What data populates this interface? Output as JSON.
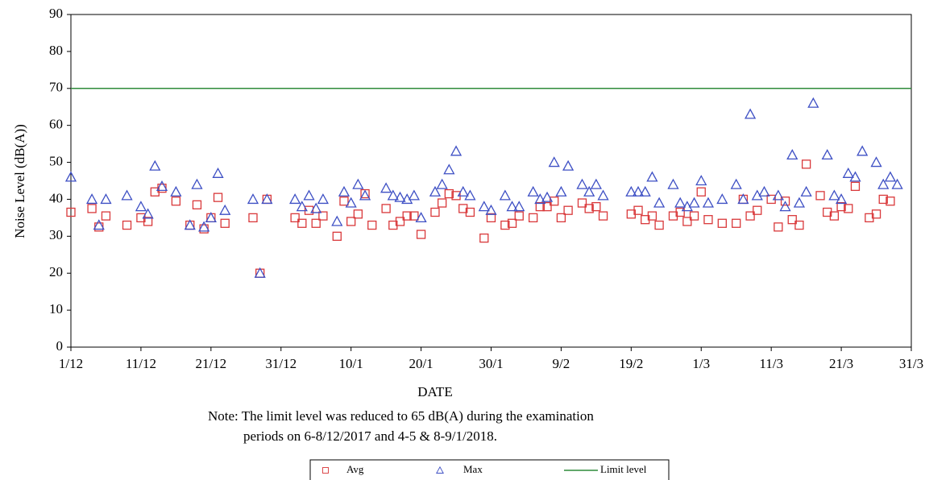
{
  "chart_data": {
    "type": "scatter",
    "y_label": "Noise Level (dB(A))",
    "x_label": "DATE",
    "notes": [
      "Note:  The limit level was reduced to 65 dB(A) during the examination",
      "periods on 6-8/12/2017 and 4-5 & 8-9/1/2018."
    ],
    "ylim": [
      0,
      90
    ],
    "yticks": [
      0,
      10,
      20,
      30,
      40,
      50,
      60,
      70,
      80,
      90
    ],
    "xlim": [
      "1/12",
      "31/3"
    ],
    "xticks": [
      "1/12",
      "11/12",
      "21/12",
      "31/12",
      "10/1",
      "20/1",
      "30/1",
      "9/2",
      "19/2",
      "1/3",
      "11/3",
      "21/3",
      "31/3"
    ],
    "x": [
      "1/12",
      "4/12",
      "5/12",
      "6/12",
      "9/12",
      "11/12",
      "12/12",
      "13/12",
      "14/12",
      "16/12",
      "18/12",
      "19/12",
      "20/12",
      "21/12",
      "22/12",
      "23/12",
      "27/12",
      "28/12",
      "29/12",
      "2/1",
      "3/1",
      "4/1",
      "5/1",
      "6/1",
      "8/1",
      "9/1",
      "10/1",
      "11/1",
      "12/1",
      "13/1",
      "15/1",
      "16/1",
      "17/1",
      "18/1",
      "19/1",
      "20/1",
      "22/1",
      "23/1",
      "24/1",
      "25/1",
      "26/1",
      "27/1",
      "29/1",
      "30/1",
      "1/2",
      "2/2",
      "3/2",
      "5/2",
      "6/2",
      "7/2",
      "8/2",
      "9/2",
      "10/2",
      "12/2",
      "13/2",
      "14/2",
      "15/2",
      "19/2",
      "20/2",
      "21/2",
      "22/2",
      "23/2",
      "25/2",
      "26/2",
      "27/2",
      "28/2",
      "1/3",
      "2/3",
      "4/3",
      "6/3",
      "7/3",
      "8/3",
      "9/3",
      "10/3",
      "11/3",
      "12/3",
      "13/3",
      "14/3",
      "15/3",
      "16/3",
      "17/3",
      "18/3",
      "19/3",
      "20/3",
      "21/3",
      "22/3",
      "23/3",
      "24/3",
      "25/3",
      "26/3",
      "27/3",
      "28/3",
      "29/3"
    ],
    "series": [
      {
        "name": "Avg",
        "color": "#d9383a",
        "marker": "square",
        "values": [
          36.5,
          37.5,
          32.5,
          35.5,
          33,
          35,
          34,
          42,
          43,
          39.5,
          33,
          38.5,
          32,
          35,
          40.5,
          33.5,
          35,
          20,
          40,
          35,
          33.5,
          37,
          33.5,
          35.5,
          30,
          39.5,
          34,
          36,
          41.5,
          33,
          37.5,
          33,
          34,
          35.5,
          35.5,
          30.5,
          36.5,
          39,
          41.5,
          41,
          37.5,
          36.5,
          29.5,
          35,
          33,
          33.5,
          35.5,
          35,
          38,
          38,
          39.5,
          35,
          37,
          39,
          37.5,
          38,
          35.5,
          36,
          37,
          34.5,
          35.5,
          33,
          35.5,
          36.5,
          34,
          35.5,
          42,
          34.5,
          33.5,
          33.5,
          40,
          35.5,
          37,
          null,
          40,
          32.5,
          39.5,
          34.5,
          33,
          49.5,
          null,
          41,
          36.5,
          35.5,
          38,
          37.5,
          43.5,
          null,
          35,
          36,
          40,
          39.5,
          null
        ]
      },
      {
        "name": "Max",
        "color": "#3d4fc4",
        "marker": "triangle",
        "values": [
          46,
          40,
          33,
          40,
          41,
          38,
          36,
          49,
          43.5,
          42,
          33,
          44,
          32.5,
          35,
          47,
          37,
          40,
          20,
          40,
          40,
          38,
          41,
          37.5,
          40,
          34,
          42,
          39,
          44,
          41,
          null,
          43,
          41,
          40.5,
          40,
          41,
          35,
          42,
          44,
          48,
          53,
          42,
          41,
          38,
          37,
          41,
          38,
          38,
          42,
          40,
          40.5,
          50,
          42,
          49,
          44,
          42,
          44,
          41,
          42,
          42,
          42,
          46,
          39,
          44,
          39,
          38,
          39,
          45,
          39,
          40,
          44,
          40,
          63,
          41,
          42,
          null,
          41,
          38,
          52,
          39,
          42,
          66,
          null,
          52,
          41,
          40,
          47,
          46,
          53,
          null,
          50,
          44,
          46,
          44
        ]
      }
    ],
    "limit": {
      "name": "Limit level",
      "value": 70,
      "color": "#2e8b3a"
    }
  }
}
